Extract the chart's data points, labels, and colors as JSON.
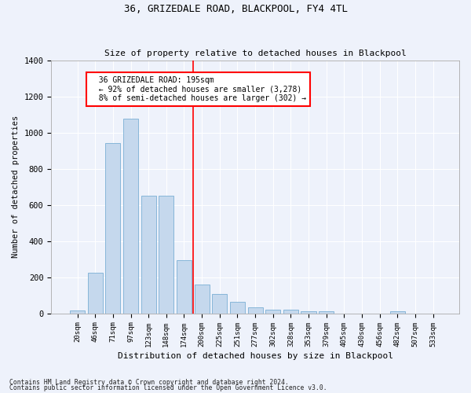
{
  "title": "36, GRIZEDALE ROAD, BLACKPOOL, FY4 4TL",
  "subtitle": "Size of property relative to detached houses in Blackpool",
  "xlabel": "Distribution of detached houses by size in Blackpool",
  "ylabel": "Number of detached properties",
  "bar_color": "#c5d8ed",
  "bar_edge_color": "#7aafd4",
  "background_color": "#eef2fb",
  "grid_color": "#ffffff",
  "categories": [
    "20sqm",
    "46sqm",
    "71sqm",
    "97sqm",
    "123sqm",
    "148sqm",
    "174sqm",
    "200sqm",
    "225sqm",
    "251sqm",
    "277sqm",
    "302sqm",
    "328sqm",
    "353sqm",
    "379sqm",
    "405sqm",
    "430sqm",
    "456sqm",
    "482sqm",
    "507sqm",
    "533sqm"
  ],
  "values": [
    15,
    225,
    940,
    1075,
    650,
    650,
    295,
    160,
    105,
    65,
    35,
    20,
    20,
    12,
    12,
    0,
    0,
    0,
    10,
    0,
    0
  ],
  "vline_x_index": 7,
  "annotation_text": "  36 GRIZEDALE ROAD: 195sqm\n  ← 92% of detached houses are smaller (3,278)\n  8% of semi-detached houses are larger (302) →",
  "annotation_box_color": "white",
  "annotation_box_edge_color": "red",
  "vline_color": "red",
  "ylim": [
    0,
    1400
  ],
  "yticks": [
    0,
    200,
    400,
    600,
    800,
    1000,
    1200,
    1400
  ],
  "footnote1": "Contains HM Land Registry data © Crown copyright and database right 2024.",
  "footnote2": "Contains public sector information licensed under the Open Government Licence v3.0."
}
